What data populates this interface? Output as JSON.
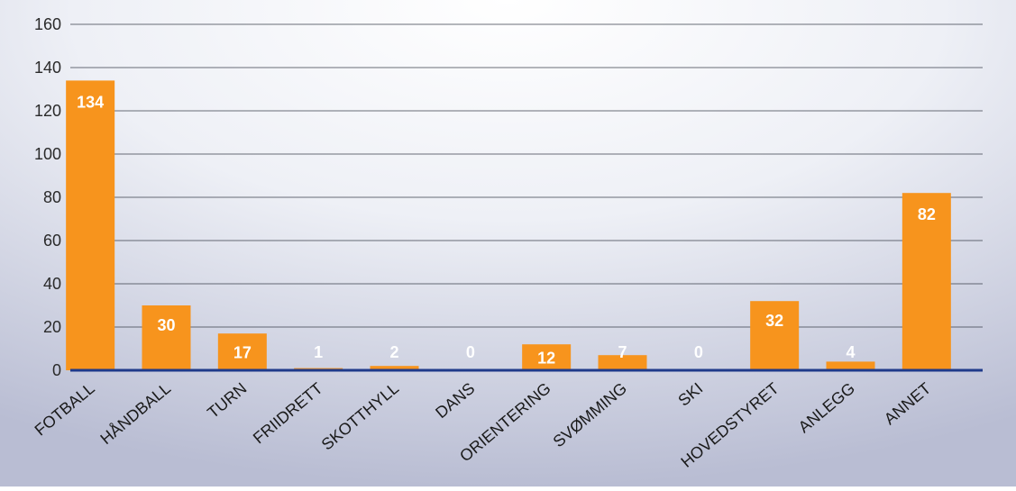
{
  "chart_data": {
    "type": "bar",
    "categories": [
      "FOTBALL",
      "HÅNDBALL",
      "TURN",
      "FRIIDRETT",
      "SKOTTHYLL",
      "DANS",
      "ORIENTERING",
      "SVØMMING",
      "SKI",
      "HOVEDSTYRET",
      "ANLEGG",
      "ANNET"
    ],
    "values": [
      134,
      30,
      17,
      1,
      2,
      0,
      12,
      7,
      0,
      32,
      4,
      82
    ],
    "data_labels": [
      "134",
      "30",
      "17",
      "1",
      "2",
      "0",
      "12",
      "7",
      "0",
      "32",
      "4",
      "82"
    ],
    "title": "",
    "xlabel": "",
    "ylabel": "",
    "ylim": [
      0,
      160
    ],
    "yticks": [
      0,
      20,
      40,
      60,
      80,
      100,
      120,
      140,
      160
    ],
    "ytick_labels": [
      "0",
      "20",
      "40",
      "60",
      "80",
      "100",
      "120",
      "140",
      "160"
    ],
    "grid": true,
    "legend": "none",
    "bar_color": "#f7941d",
    "label_color": "#ffffff",
    "grid_color": "#3a3f4b",
    "axis_color": "#1f3a8a",
    "background_center": "#ffffff",
    "background_edge": "#bfc3d8"
  }
}
